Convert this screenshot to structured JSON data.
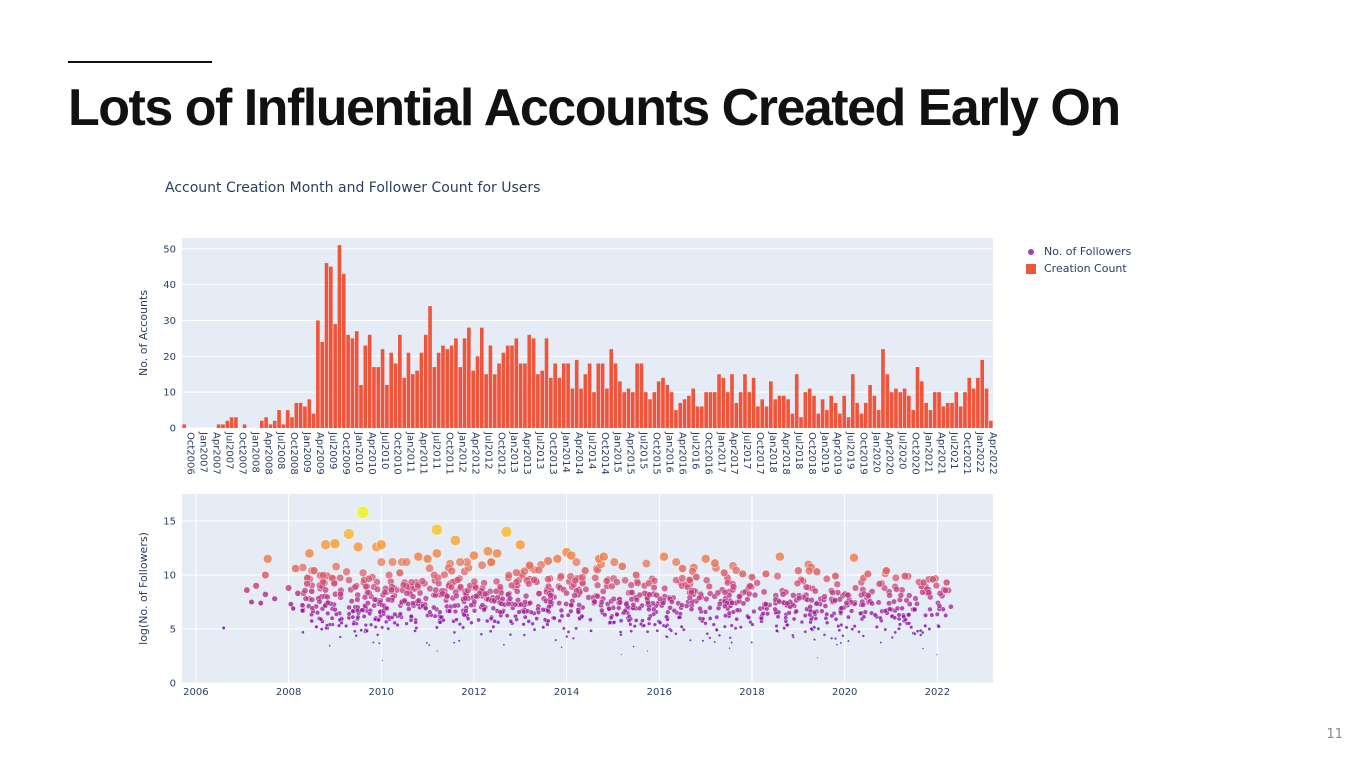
{
  "slide": {
    "title": "Lots of Influential Accounts Created Early On",
    "page_number": "11"
  },
  "chart_data": [
    {
      "type": "bar",
      "title": "Account Creation Month and Follower Count for Users",
      "ylabel": "No. of Accounts",
      "xlabel": "",
      "ylim": [
        0,
        53
      ],
      "yticks": [
        0,
        10,
        20,
        30,
        40,
        50
      ],
      "grid": true,
      "legend_position": "top-right",
      "series_name": "Creation Count",
      "color": "#ef553b",
      "x_tick_labels": [
        "Oct2006",
        "Jan2007",
        "Apr2007",
        "Jul2007",
        "Oct2007",
        "Jan2008",
        "Apr2008",
        "Jul2008",
        "Oct2008",
        "Jan2009",
        "Apr2009",
        "Jul2009",
        "Oct2009",
        "Jan2010",
        "Apr2010",
        "Jul2010",
        "Oct2010",
        "Jan2011",
        "Apr2011",
        "Jul2011",
        "Oct2011",
        "Jan2012",
        "Apr2012",
        "Jul2012",
        "Oct2012",
        "Jan2013",
        "Apr2013",
        "Jul2013",
        "Oct2013",
        "Jan2014",
        "Apr2014",
        "Jul2014",
        "Oct2014",
        "Jan2015",
        "Apr2015",
        "Jul2015",
        "Oct2015",
        "Jan2016",
        "Apr2016",
        "Jul2016",
        "Oct2016",
        "Jan2017",
        "Apr2017",
        "Jul2017",
        "Oct2017",
        "Jan2018",
        "Apr2018",
        "Jul2018",
        "Oct2018",
        "Jan2019",
        "Apr2019",
        "Jul2019",
        "Oct2019",
        "Jan2020",
        "Apr2020",
        "Jul2020",
        "Oct2020",
        "Jan2021",
        "Apr2021",
        "Jul2021",
        "Oct2021",
        "Jan2022",
        "Apr2022"
      ],
      "start_month": "2006-10",
      "values": [
        1,
        0,
        0,
        0,
        0,
        0,
        0,
        0,
        1,
        1,
        2,
        3,
        3,
        0,
        1,
        0,
        0,
        0,
        2,
        3,
        1,
        2,
        5,
        1,
        5,
        3,
        7,
        7,
        6,
        8,
        4,
        30,
        24,
        46,
        45,
        29,
        51,
        43,
        26,
        25,
        27,
        12,
        23,
        26,
        17,
        17,
        22,
        12,
        21,
        18,
        26,
        14,
        21,
        15,
        16,
        21,
        26,
        34,
        17,
        21,
        23,
        22,
        23,
        25,
        17,
        25,
        28,
        16,
        20,
        28,
        15,
        23,
        15,
        18,
        21,
        23,
        23,
        25,
        18,
        18,
        26,
        25,
        15,
        16,
        25,
        14,
        18,
        14,
        18,
        18,
        11,
        19,
        11,
        15,
        18,
        10,
        18,
        18,
        11,
        22,
        18,
        13,
        10,
        11,
        10,
        18,
        18,
        10,
        8,
        10,
        13,
        14,
        12,
        10,
        5,
        7,
        8,
        9,
        11,
        6,
        6,
        10,
        10,
        10,
        15,
        14,
        10,
        15,
        7,
        10,
        15,
        10,
        14,
        6,
        8,
        6,
        13,
        8,
        9,
        9,
        8,
        4,
        15,
        3,
        10,
        11,
        9,
        4,
        8,
        5,
        9,
        7,
        4,
        9,
        3,
        15,
        7,
        4,
        7,
        12,
        9,
        5,
        22,
        15,
        10,
        11,
        10,
        11,
        9,
        5,
        17,
        13,
        7,
        5,
        10,
        10,
        6,
        7,
        7,
        10,
        6,
        10,
        14,
        11,
        14,
        19,
        11,
        2
      ]
    },
    {
      "type": "scatter",
      "title": "",
      "ylabel": "log(No. of Followers)",
      "xlabel": "",
      "xlim": [
        2005.7,
        2023.2
      ],
      "ylim": [
        0,
        17.5
      ],
      "xticks": [
        "2006",
        "2008",
        "2010",
        "2012",
        "2014",
        "2016",
        "2018",
        "2020",
        "2022"
      ],
      "yticks": [
        "0",
        "5",
        "10",
        "15"
      ],
      "grid": true,
      "series_name": "No. of Followers",
      "color_scale": [
        "#0d0887",
        "#7e03a8",
        "#cc4778",
        "#f89540",
        "#f0f921"
      ],
      "points": [
        [
          2006.6,
          5.1
        ],
        [
          2007.1,
          8.6
        ],
        [
          2007.2,
          7.5
        ],
        [
          2007.3,
          9.0
        ],
        [
          2007.4,
          7.4
        ],
        [
          2007.5,
          8.2
        ],
        [
          2007.5,
          10.0
        ],
        [
          2007.55,
          11.5
        ],
        [
          2007.7,
          7.8
        ],
        [
          2008.0,
          8.8
        ],
        [
          2008.05,
          7.3
        ],
        [
          2008.1,
          6.9
        ],
        [
          2008.15,
          10.6
        ],
        [
          2008.2,
          8.3
        ],
        [
          2008.3,
          7.2
        ],
        [
          2008.3,
          6.7
        ],
        [
          2008.4,
          9.2
        ],
        [
          2008.45,
          12.0
        ],
        [
          2008.5,
          8.5
        ],
        [
          2008.55,
          10.4
        ],
        [
          2008.6,
          5.2
        ],
        [
          2008.8,
          12.8
        ],
        [
          2009.0,
          12.9
        ],
        [
          2009.3,
          13.8
        ],
        [
          2009.5,
          12.6
        ],
        [
          2009.6,
          15.8
        ],
        [
          2009.9,
          12.6
        ],
        [
          2010.0,
          12.8
        ],
        [
          2010.4,
          10.2
        ],
        [
          2010.8,
          11.7
        ],
        [
          2011.0,
          11.5
        ],
        [
          2011.2,
          14.2
        ],
        [
          2011.2,
          12.0
        ],
        [
          2011.6,
          13.2
        ],
        [
          2012.0,
          11.8
        ],
        [
          2012.3,
          12.2
        ],
        [
          2012.5,
          12.0
        ],
        [
          2012.7,
          14.0
        ],
        [
          2013.0,
          12.8
        ],
        [
          2013.2,
          10.9
        ],
        [
          2013.6,
          11.3
        ],
        [
          2013.8,
          11.5
        ],
        [
          2014.0,
          12.1
        ],
        [
          2014.1,
          11.8
        ],
        [
          2014.4,
          10.4
        ],
        [
          2014.7,
          11.5
        ],
        [
          2014.8,
          11.7
        ],
        [
          2015.2,
          10.8
        ],
        [
          2015.5,
          10.0
        ],
        [
          2016.1,
          11.7
        ],
        [
          2016.5,
          10.6
        ],
        [
          2016.8,
          9.8
        ],
        [
          2017.0,
          11.5
        ],
        [
          2017.2,
          11.1
        ],
        [
          2017.4,
          10.2
        ],
        [
          2017.8,
          10.1
        ],
        [
          2018.0,
          9.8
        ],
        [
          2018.3,
          10.1
        ],
        [
          2018.6,
          11.7
        ],
        [
          2019.0,
          10.4
        ],
        [
          2019.4,
          10.3
        ],
        [
          2019.8,
          9.9
        ],
        [
          2020.2,
          11.6
        ],
        [
          2020.5,
          10.1
        ],
        [
          2020.9,
          10.4
        ],
        [
          2021.3,
          9.9
        ],
        [
          2021.7,
          9.3
        ],
        [
          2021.9,
          9.6
        ],
        [
          2022.2,
          9.3
        ]
      ],
      "density": [
        [
          2008.3,
          2010.0,
          7.3,
          1.6,
          150
        ],
        [
          2010.0,
          2012.0,
          7.6,
          1.6,
          180
        ],
        [
          2012.0,
          2014.0,
          7.4,
          1.6,
          170
        ],
        [
          2014.0,
          2016.0,
          7.2,
          1.6,
          160
        ],
        [
          2016.0,
          2018.0,
          7.1,
          1.6,
          150
        ],
        [
          2018.0,
          2020.0,
          6.9,
          1.6,
          140
        ],
        [
          2020.0,
          2022.3,
          6.8,
          1.6,
          140
        ]
      ]
    }
  ],
  "legend": {
    "items": [
      {
        "label": "No. of Followers",
        "symbol": "circle",
        "color": "#a53bb6"
      },
      {
        "label": "Creation Count",
        "symbol": "square",
        "color": "#ef553b"
      }
    ]
  }
}
